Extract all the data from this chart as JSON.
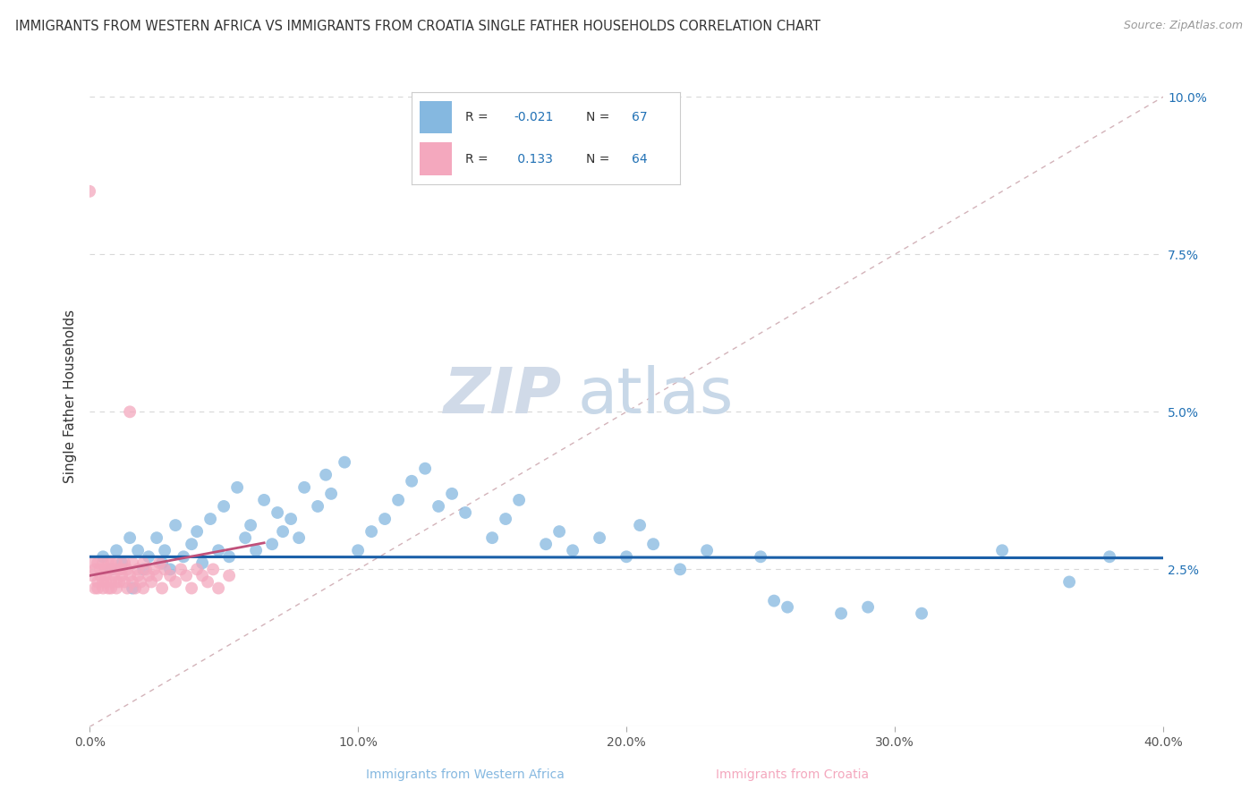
{
  "title": "IMMIGRANTS FROM WESTERN AFRICA VS IMMIGRANTS FROM CROATIA SINGLE FATHER HOUSEHOLDS CORRELATION CHART",
  "source": "Source: ZipAtlas.com",
  "xlabel_blue": "Immigrants from Western Africa",
  "xlabel_pink": "Immigrants from Croatia",
  "ylabel": "Single Father Households",
  "xlim": [
    0.0,
    0.4
  ],
  "ylim": [
    0.0,
    0.105
  ],
  "xticks": [
    0.0,
    0.1,
    0.2,
    0.3,
    0.4
  ],
  "xtick_labels": [
    "0.0%",
    "10.0%",
    "20.0%",
    "30.0%",
    "40.0%"
  ],
  "yticks_right": [
    0.025,
    0.05,
    0.075,
    0.1
  ],
  "ytick_labels_right": [
    "2.5%",
    "5.0%",
    "7.5%",
    "10.0%"
  ],
  "blue_color": "#85b8e0",
  "pink_color": "#f4a8be",
  "blue_line_color": "#1a5fa8",
  "pink_line_color": "#c0507a",
  "diag_line_color": "#c8a0a8",
  "legend_R_blue": "-0.021",
  "legend_N_blue": "67",
  "legend_R_pink": "0.133",
  "legend_N_pink": "64",
  "watermark_zip": "ZIP",
  "watermark_atlas": "atlas",
  "background_color": "#ffffff",
  "grid_color": "#d8d8d8",
  "blue_scatter_x": [
    0.005,
    0.008,
    0.01,
    0.012,
    0.015,
    0.016,
    0.018,
    0.02,
    0.022,
    0.025,
    0.027,
    0.028,
    0.03,
    0.032,
    0.035,
    0.038,
    0.04,
    0.042,
    0.045,
    0.048,
    0.05,
    0.052,
    0.055,
    0.058,
    0.06,
    0.062,
    0.065,
    0.068,
    0.07,
    0.072,
    0.075,
    0.078,
    0.08,
    0.085,
    0.088,
    0.09,
    0.095,
    0.1,
    0.105,
    0.11,
    0.115,
    0.12,
    0.125,
    0.13,
    0.135,
    0.14,
    0.15,
    0.155,
    0.16,
    0.17,
    0.175,
    0.18,
    0.19,
    0.2,
    0.205,
    0.21,
    0.22,
    0.23,
    0.25,
    0.255,
    0.26,
    0.28,
    0.29,
    0.31,
    0.34,
    0.365,
    0.38
  ],
  "blue_scatter_y": [
    0.027,
    0.025,
    0.028,
    0.026,
    0.03,
    0.022,
    0.028,
    0.025,
    0.027,
    0.03,
    0.026,
    0.028,
    0.025,
    0.032,
    0.027,
    0.029,
    0.031,
    0.026,
    0.033,
    0.028,
    0.035,
    0.027,
    0.038,
    0.03,
    0.032,
    0.028,
    0.036,
    0.029,
    0.034,
    0.031,
    0.033,
    0.03,
    0.038,
    0.035,
    0.04,
    0.037,
    0.042,
    0.028,
    0.031,
    0.033,
    0.036,
    0.039,
    0.041,
    0.035,
    0.037,
    0.034,
    0.03,
    0.033,
    0.036,
    0.029,
    0.031,
    0.028,
    0.03,
    0.027,
    0.032,
    0.029,
    0.025,
    0.028,
    0.027,
    0.02,
    0.019,
    0.018,
    0.019,
    0.018,
    0.028,
    0.023,
    0.027
  ],
  "pink_scatter_x": [
    0.0,
    0.001,
    0.001,
    0.002,
    0.002,
    0.003,
    0.003,
    0.003,
    0.004,
    0.004,
    0.005,
    0.005,
    0.005,
    0.006,
    0.006,
    0.006,
    0.007,
    0.007,
    0.007,
    0.008,
    0.008,
    0.008,
    0.009,
    0.009,
    0.01,
    0.01,
    0.01,
    0.011,
    0.011,
    0.012,
    0.012,
    0.013,
    0.013,
    0.014,
    0.014,
    0.015,
    0.015,
    0.016,
    0.016,
    0.017,
    0.018,
    0.018,
    0.019,
    0.02,
    0.02,
    0.021,
    0.022,
    0.023,
    0.024,
    0.025,
    0.026,
    0.027,
    0.028,
    0.03,
    0.032,
    0.034,
    0.036,
    0.038,
    0.04,
    0.042,
    0.044,
    0.046,
    0.048,
    0.052
  ],
  "pink_scatter_y": [
    0.085,
    0.024,
    0.026,
    0.022,
    0.025,
    0.023,
    0.026,
    0.022,
    0.025,
    0.024,
    0.023,
    0.026,
    0.022,
    0.025,
    0.023,
    0.024,
    0.026,
    0.022,
    0.025,
    0.023,
    0.026,
    0.022,
    0.025,
    0.024,
    0.023,
    0.026,
    0.022,
    0.025,
    0.023,
    0.025,
    0.024,
    0.023,
    0.026,
    0.022,
    0.025,
    0.05,
    0.024,
    0.023,
    0.026,
    0.022,
    0.025,
    0.024,
    0.023,
    0.026,
    0.022,
    0.025,
    0.024,
    0.023,
    0.025,
    0.024,
    0.026,
    0.022,
    0.025,
    0.024,
    0.023,
    0.025,
    0.024,
    0.022,
    0.025,
    0.024,
    0.023,
    0.025,
    0.022,
    0.024
  ]
}
